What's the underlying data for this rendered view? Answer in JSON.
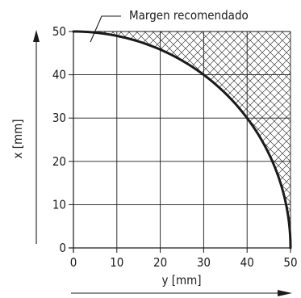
{
  "chart_data": {
    "type": "line",
    "title": "",
    "xlabel": "y [mm]",
    "ylabel": "x [mm]",
    "xlim": [
      0,
      50
    ],
    "ylim": [
      0,
      50
    ],
    "x_ticks": [
      0,
      10,
      20,
      30,
      40,
      50
    ],
    "y_ticks": [
      0,
      10,
      20,
      30,
      40,
      50
    ],
    "grid": true,
    "series": [
      {
        "x": [
          0,
          5,
          10,
          15,
          20,
          25,
          30,
          35,
          40,
          45,
          48,
          50
        ],
        "y": [
          50,
          49.75,
          48.99,
          47.7,
          45.83,
          43.3,
          40,
          35.71,
          30,
          21.79,
          14,
          0
        ]
      }
    ],
    "shaded_region": "above-curve",
    "annotation": "Margen recomendado",
    "colors": {
      "curve": "#1a1a1a",
      "grid": "#1a1a1a",
      "hatch": "#1a1a1a"
    }
  }
}
